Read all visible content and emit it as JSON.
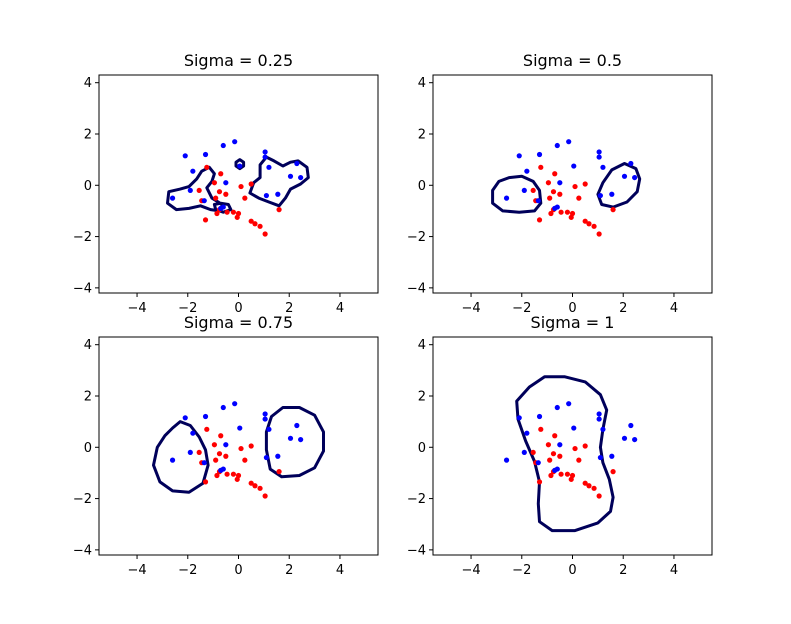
{
  "chart_data": [
    {
      "type": "scatter",
      "title": "Sigma = 0.25",
      "xlim": [
        -5.5,
        5.5
      ],
      "ylim": [
        -4.2,
        4.3
      ],
      "xticks": [
        -4,
        -2,
        0,
        2,
        4
      ],
      "yticks": [
        -4,
        -2,
        0,
        2,
        4
      ],
      "contours": [
        [
          [
            -2.3,
            -0.15
          ],
          [
            -1.95,
            -0.05
          ],
          [
            -1.65,
            0.25
          ],
          [
            -1.45,
            0.55
          ],
          [
            -1.15,
            0.7
          ],
          [
            -0.95,
            0.45
          ],
          [
            -1.05,
            0.15
          ],
          [
            -1.25,
            -0.1
          ],
          [
            -1.05,
            -0.5
          ],
          [
            -0.8,
            -0.65
          ],
          [
            -0.6,
            -0.8
          ],
          [
            -0.75,
            -1.0
          ],
          [
            -1.1,
            -0.95
          ],
          [
            -1.5,
            -0.8
          ],
          [
            -1.95,
            -0.9
          ],
          [
            -2.45,
            -0.95
          ],
          [
            -2.8,
            -0.7
          ],
          [
            -2.75,
            -0.25
          ],
          [
            -2.3,
            -0.15
          ]
        ],
        [
          [
            -0.95,
            -0.75
          ],
          [
            -0.7,
            -0.7
          ],
          [
            -0.4,
            -0.75
          ],
          [
            -0.3,
            -0.95
          ],
          [
            -0.6,
            -1.05
          ],
          [
            -0.9,
            -0.95
          ],
          [
            -0.95,
            -0.75
          ]
        ],
        [
          [
            0.05,
            1.0
          ],
          [
            0.2,
            0.9
          ],
          [
            0.2,
            0.75
          ],
          [
            0.05,
            0.65
          ],
          [
            -0.1,
            0.75
          ],
          [
            -0.1,
            0.9
          ],
          [
            0.05,
            1.0
          ]
        ],
        [
          [
            0.85,
            0.8
          ],
          [
            1.1,
            1.1
          ],
          [
            1.4,
            0.95
          ],
          [
            1.75,
            0.75
          ],
          [
            2.05,
            0.9
          ],
          [
            2.35,
            0.95
          ],
          [
            2.7,
            0.7
          ],
          [
            2.75,
            0.3
          ],
          [
            2.45,
            0.05
          ],
          [
            2.05,
            -0.15
          ],
          [
            1.85,
            -0.5
          ],
          [
            1.6,
            -0.8
          ],
          [
            1.2,
            -0.65
          ],
          [
            0.8,
            -0.5
          ],
          [
            0.45,
            -0.3
          ],
          [
            0.6,
            0.1
          ],
          [
            0.85,
            0.3
          ],
          [
            0.85,
            0.8
          ]
        ]
      ],
      "points_blue": [
        [
          -1.3,
          1.2
        ],
        [
          -2.1,
          1.15
        ],
        [
          -0.6,
          1.55
        ],
        [
          -0.15,
          1.7
        ],
        [
          1.05,
          1.3
        ],
        [
          1.05,
          1.1
        ],
        [
          2.3,
          0.85
        ],
        [
          -1.8,
          0.55
        ],
        [
          -0.5,
          0.1
        ],
        [
          -1.9,
          -0.2
        ],
        [
          -1.35,
          -0.6
        ],
        [
          1.2,
          0.7
        ],
        [
          2.05,
          0.35
        ],
        [
          2.45,
          0.3
        ],
        [
          -2.6,
          -0.5
        ],
        [
          1.55,
          -0.35
        ],
        [
          1.1,
          -0.4
        ],
        [
          0.05,
          0.75
        ],
        [
          -0.7,
          -0.9
        ],
        [
          -0.6,
          -0.85
        ]
      ],
      "points_red": [
        [
          -1.25,
          0.7
        ],
        [
          -0.7,
          0.45
        ],
        [
          -0.95,
          0.1
        ],
        [
          -0.75,
          -0.25
        ],
        [
          -0.9,
          -0.5
        ],
        [
          -0.5,
          -0.35
        ],
        [
          -1.55,
          -0.2
        ],
        [
          -1.45,
          -0.6
        ],
        [
          -1.3,
          -1.35
        ],
        [
          -0.85,
          -1.1
        ],
        [
          -0.75,
          -0.95
        ],
        [
          -0.45,
          -1.05
        ],
        [
          -0.2,
          -1.05
        ],
        [
          0.0,
          -1.1
        ],
        [
          -0.05,
          -1.25
        ],
        [
          0.25,
          -0.5
        ],
        [
          0.1,
          -0.05
        ],
        [
          0.5,
          0.05
        ],
        [
          0.5,
          -1.4
        ],
        [
          0.65,
          -1.5
        ],
        [
          0.85,
          -1.6
        ],
        [
          1.05,
          -1.9
        ],
        [
          1.6,
          -0.95
        ]
      ]
    },
    {
      "type": "scatter",
      "title": "Sigma = 0.5",
      "xlim": [
        -5.5,
        5.5
      ],
      "ylim": [
        -4.2,
        4.3
      ],
      "xticks": [
        -4,
        -2,
        0,
        2,
        4
      ],
      "yticks": [
        -4,
        -2,
        0,
        2,
        4
      ],
      "contours": [
        [
          [
            -2.5,
            0.3
          ],
          [
            -2.0,
            0.35
          ],
          [
            -1.55,
            0.15
          ],
          [
            -1.3,
            -0.2
          ],
          [
            -1.25,
            -0.7
          ],
          [
            -1.5,
            -1.0
          ],
          [
            -2.1,
            -1.05
          ],
          [
            -2.75,
            -1.0
          ],
          [
            -3.15,
            -0.7
          ],
          [
            -3.15,
            -0.2
          ],
          [
            -2.9,
            0.15
          ],
          [
            -2.5,
            0.3
          ]
        ],
        [
          [
            1.2,
            0.1
          ],
          [
            1.55,
            0.6
          ],
          [
            2.05,
            0.85
          ],
          [
            2.5,
            0.65
          ],
          [
            2.65,
            0.25
          ],
          [
            2.55,
            -0.25
          ],
          [
            2.15,
            -0.65
          ],
          [
            1.6,
            -0.85
          ],
          [
            1.15,
            -0.75
          ],
          [
            1.0,
            -0.35
          ],
          [
            1.2,
            0.1
          ]
        ]
      ],
      "points_blue": [
        [
          -1.3,
          1.2
        ],
        [
          -2.1,
          1.15
        ],
        [
          -0.6,
          1.55
        ],
        [
          -0.15,
          1.7
        ],
        [
          1.05,
          1.3
        ],
        [
          1.05,
          1.1
        ],
        [
          2.3,
          0.85
        ],
        [
          -1.8,
          0.55
        ],
        [
          -0.5,
          0.1
        ],
        [
          -1.9,
          -0.2
        ],
        [
          -1.35,
          -0.6
        ],
        [
          1.2,
          0.7
        ],
        [
          2.05,
          0.35
        ],
        [
          2.45,
          0.3
        ],
        [
          -2.6,
          -0.5
        ],
        [
          1.55,
          -0.35
        ],
        [
          1.1,
          -0.4
        ],
        [
          0.05,
          0.75
        ],
        [
          -0.7,
          -0.9
        ],
        [
          -0.6,
          -0.85
        ]
      ],
      "points_red": [
        [
          -1.25,
          0.7
        ],
        [
          -0.7,
          0.45
        ],
        [
          -0.95,
          0.1
        ],
        [
          -0.75,
          -0.25
        ],
        [
          -0.9,
          -0.5
        ],
        [
          -0.5,
          -0.35
        ],
        [
          -1.55,
          -0.2
        ],
        [
          -1.45,
          -0.6
        ],
        [
          -1.3,
          -1.35
        ],
        [
          -0.85,
          -1.1
        ],
        [
          -0.75,
          -0.95
        ],
        [
          -0.45,
          -1.05
        ],
        [
          -0.2,
          -1.05
        ],
        [
          0.0,
          -1.1
        ],
        [
          -0.05,
          -1.25
        ],
        [
          0.25,
          -0.5
        ],
        [
          0.1,
          -0.05
        ],
        [
          0.5,
          0.05
        ],
        [
          0.5,
          -1.4
        ],
        [
          0.65,
          -1.5
        ],
        [
          0.85,
          -1.6
        ],
        [
          1.05,
          -1.9
        ],
        [
          1.6,
          -0.95
        ]
      ]
    },
    {
      "type": "scatter",
      "title": "Sigma = 0.75",
      "xlim": [
        -5.5,
        5.5
      ],
      "ylim": [
        -4.2,
        4.3
      ],
      "xticks": [
        -4,
        -2,
        0,
        2,
        4
      ],
      "yticks": [
        -4,
        -2,
        0,
        2,
        4
      ],
      "contours": [
        [
          [
            -2.6,
            0.75
          ],
          [
            -2.3,
            1.0
          ],
          [
            -1.9,
            0.85
          ],
          [
            -1.55,
            0.4
          ],
          [
            -1.3,
            -0.1
          ],
          [
            -1.2,
            -0.7
          ],
          [
            -1.4,
            -1.4
          ],
          [
            -1.95,
            -1.75
          ],
          [
            -2.6,
            -1.7
          ],
          [
            -3.1,
            -1.35
          ],
          [
            -3.35,
            -0.7
          ],
          [
            -3.2,
            0.0
          ],
          [
            -2.9,
            0.45
          ],
          [
            -2.6,
            0.75
          ]
        ],
        [
          [
            1.3,
            1.2
          ],
          [
            1.75,
            1.55
          ],
          [
            2.4,
            1.55
          ],
          [
            3.0,
            1.25
          ],
          [
            3.35,
            0.6
          ],
          [
            3.35,
            -0.15
          ],
          [
            3.0,
            -0.8
          ],
          [
            2.4,
            -1.1
          ],
          [
            1.7,
            -1.15
          ],
          [
            1.25,
            -0.85
          ],
          [
            1.1,
            -0.1
          ],
          [
            1.1,
            0.6
          ],
          [
            1.3,
            1.2
          ]
        ]
      ],
      "points_blue": [
        [
          -1.3,
          1.2
        ],
        [
          -2.1,
          1.15
        ],
        [
          -0.6,
          1.55
        ],
        [
          -0.15,
          1.7
        ],
        [
          1.05,
          1.3
        ],
        [
          1.05,
          1.1
        ],
        [
          2.3,
          0.85
        ],
        [
          -1.8,
          0.55
        ],
        [
          -0.5,
          0.1
        ],
        [
          -1.9,
          -0.2
        ],
        [
          -1.35,
          -0.6
        ],
        [
          1.2,
          0.7
        ],
        [
          2.05,
          0.35
        ],
        [
          2.45,
          0.3
        ],
        [
          -2.6,
          -0.5
        ],
        [
          1.55,
          -0.35
        ],
        [
          1.1,
          -0.4
        ],
        [
          0.05,
          0.75
        ],
        [
          -0.7,
          -0.9
        ],
        [
          -0.6,
          -0.85
        ]
      ],
      "points_red": [
        [
          -1.25,
          0.7
        ],
        [
          -0.7,
          0.45
        ],
        [
          -0.95,
          0.1
        ],
        [
          -0.75,
          -0.25
        ],
        [
          -0.9,
          -0.5
        ],
        [
          -0.5,
          -0.35
        ],
        [
          -1.55,
          -0.2
        ],
        [
          -1.45,
          -0.6
        ],
        [
          -1.3,
          -1.35
        ],
        [
          -0.85,
          -1.1
        ],
        [
          -0.75,
          -0.95
        ],
        [
          -0.45,
          -1.05
        ],
        [
          -0.2,
          -1.05
        ],
        [
          0.0,
          -1.1
        ],
        [
          -0.05,
          -1.25
        ],
        [
          0.25,
          -0.5
        ],
        [
          0.1,
          -0.05
        ],
        [
          0.5,
          0.05
        ],
        [
          0.5,
          -1.4
        ],
        [
          0.65,
          -1.5
        ],
        [
          0.85,
          -1.6
        ],
        [
          1.05,
          -1.9
        ],
        [
          1.6,
          -0.95
        ]
      ]
    },
    {
      "type": "scatter",
      "title": "Sigma = 1",
      "xlim": [
        -5.5,
        5.5
      ],
      "ylim": [
        -4.2,
        4.3
      ],
      "xticks": [
        -4,
        -2,
        0,
        2,
        4
      ],
      "yticks": [
        -4,
        -2,
        0,
        2,
        4
      ],
      "contours": [
        [
          [
            -1.7,
            2.35
          ],
          [
            -1.1,
            2.75
          ],
          [
            -0.3,
            2.75
          ],
          [
            0.5,
            2.55
          ],
          [
            1.1,
            2.05
          ],
          [
            1.35,
            1.45
          ],
          [
            1.2,
            0.7
          ],
          [
            1.1,
            0.0
          ],
          [
            1.2,
            -0.6
          ],
          [
            1.45,
            -1.25
          ],
          [
            1.6,
            -1.95
          ],
          [
            1.5,
            -2.5
          ],
          [
            1.0,
            -2.95
          ],
          [
            0.1,
            -3.25
          ],
          [
            -0.8,
            -3.25
          ],
          [
            -1.3,
            -2.9
          ],
          [
            -1.35,
            -2.2
          ],
          [
            -1.3,
            -1.35
          ],
          [
            -1.5,
            -0.55
          ],
          [
            -1.85,
            0.25
          ],
          [
            -2.15,
            1.1
          ],
          [
            -2.2,
            1.8
          ],
          [
            -1.7,
            2.35
          ]
        ]
      ],
      "points_blue": [
        [
          -1.3,
          1.2
        ],
        [
          -2.1,
          1.15
        ],
        [
          -0.6,
          1.55
        ],
        [
          -0.15,
          1.7
        ],
        [
          1.05,
          1.3
        ],
        [
          1.05,
          1.1
        ],
        [
          2.3,
          0.85
        ],
        [
          -1.8,
          0.55
        ],
        [
          -0.5,
          0.1
        ],
        [
          -1.9,
          -0.2
        ],
        [
          -1.35,
          -0.6
        ],
        [
          1.2,
          0.7
        ],
        [
          2.05,
          0.35
        ],
        [
          2.45,
          0.3
        ],
        [
          -2.6,
          -0.5
        ],
        [
          1.55,
          -0.35
        ],
        [
          1.1,
          -0.4
        ],
        [
          0.05,
          0.75
        ],
        [
          -0.7,
          -0.9
        ],
        [
          -0.6,
          -0.85
        ]
      ],
      "points_red": [
        [
          -1.25,
          0.7
        ],
        [
          -0.7,
          0.45
        ],
        [
          -0.95,
          0.1
        ],
        [
          -0.75,
          -0.25
        ],
        [
          -0.9,
          -0.5
        ],
        [
          -0.5,
          -0.35
        ],
        [
          -1.55,
          -0.2
        ],
        [
          -1.45,
          -0.6
        ],
        [
          -1.3,
          -1.35
        ],
        [
          -0.85,
          -1.1
        ],
        [
          -0.75,
          -0.95
        ],
        [
          -0.45,
          -1.05
        ],
        [
          -0.2,
          -1.05
        ],
        [
          0.0,
          -1.1
        ],
        [
          -0.05,
          -1.25
        ],
        [
          0.25,
          -0.5
        ],
        [
          0.1,
          -0.05
        ],
        [
          0.5,
          0.05
        ],
        [
          0.5,
          -1.4
        ],
        [
          0.65,
          -1.5
        ],
        [
          0.85,
          -1.6
        ],
        [
          1.05,
          -1.9
        ],
        [
          1.6,
          -0.95
        ]
      ]
    }
  ],
  "colors": {
    "positive": "#0000ff",
    "negative": "#ff0000",
    "contour": "#00005a",
    "axes": "#000000"
  }
}
